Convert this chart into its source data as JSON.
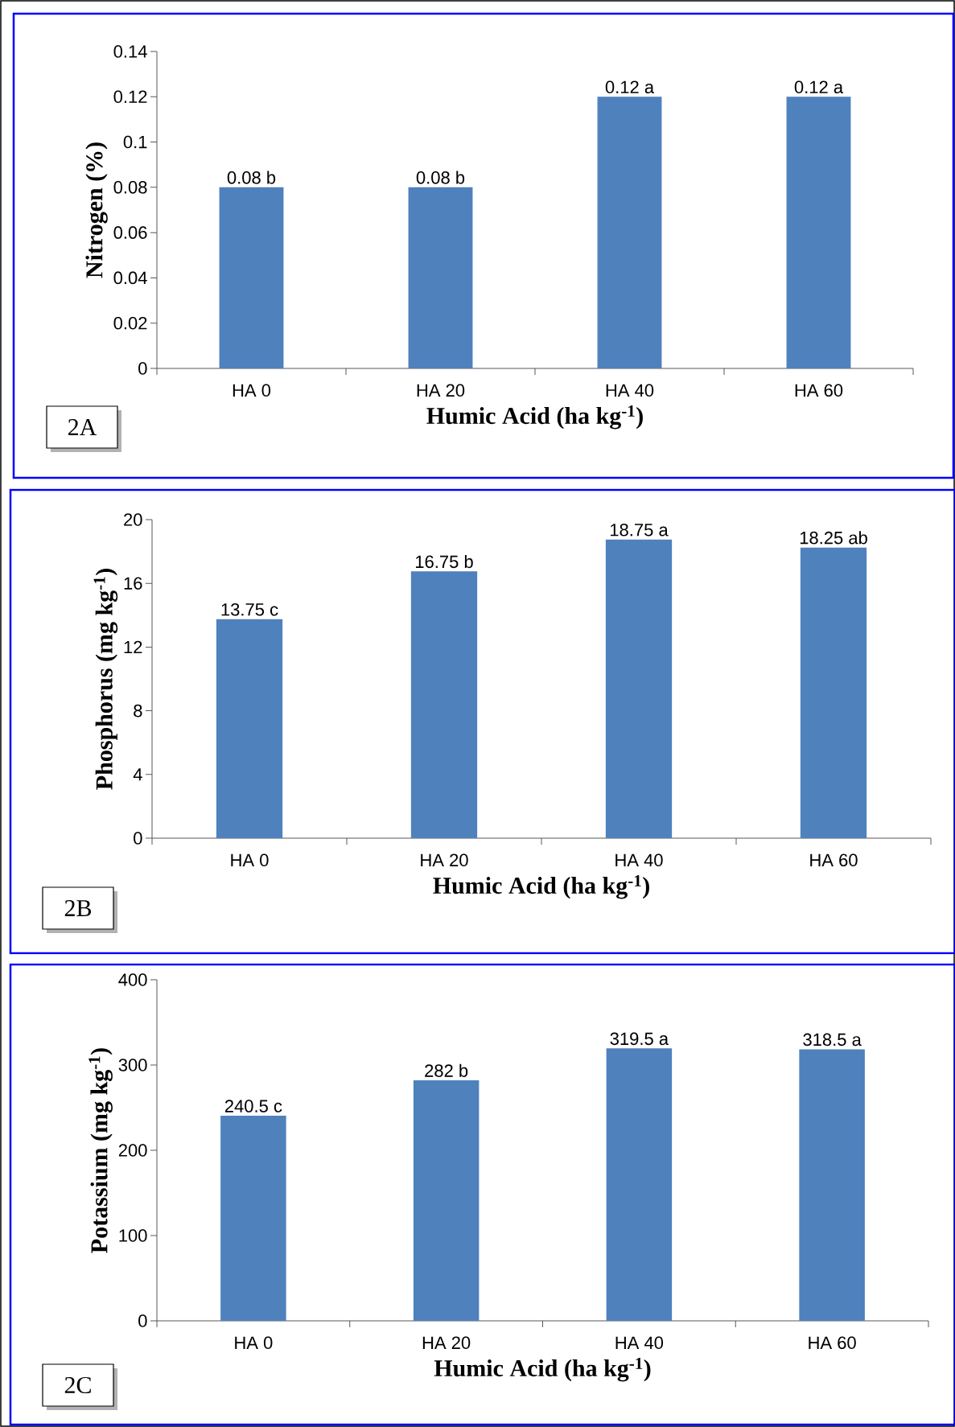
{
  "chart_data": [
    {
      "type": "bar",
      "categories": [
        "HA 0",
        "HA 20",
        "HA 40",
        "HA 60"
      ],
      "values": [
        0.08,
        0.08,
        0.12,
        0.12
      ],
      "value_labels": [
        "0.08 b",
        "0.08 b",
        "0.12 a",
        "0.12 a"
      ],
      "color": "#4f81bd",
      "ylim": [
        0,
        0.14
      ],
      "yticks": [
        0,
        0.02,
        0.04,
        0.06,
        0.08,
        0.1,
        0.12,
        0.14
      ],
      "xlabel": "Humic Acid (ha kg$^{-1}$)",
      "ylabel": "Nitrogen (%)",
      "annotations": [
        "2A"
      ]
    },
    {
      "type": "bar",
      "categories": [
        "HA 0",
        "HA 20",
        "HA 40",
        "HA 60"
      ],
      "values": [
        13.75,
        16.75,
        18.75,
        18.25
      ],
      "value_labels": [
        "13.75 c",
        "16.75 b",
        "18.75 a",
        "18.25 ab"
      ],
      "color": "#4f81bd",
      "ylim": [
        0,
        20
      ],
      "yticks": [
        0,
        4,
        8,
        12,
        16,
        20
      ],
      "xlabel": "Humic Acid (ha kg$^{-1}$)",
      "ylabel": "Phosphorus (mg kg$^{-1}$)",
      "annotations": [
        "2B"
      ]
    },
    {
      "type": "bar",
      "categories": [
        "HA 0",
        "HA 20",
        "HA 40",
        "HA 60"
      ],
      "values": [
        240.5,
        282,
        319.5,
        318.5
      ],
      "value_labels": [
        "240.5 c",
        "282 b",
        "319.5 a",
        "318.5 a"
      ],
      "color": "#4f81bd",
      "ylim": [
        0,
        400
      ],
      "yticks": [
        0,
        100,
        200,
        300,
        400
      ],
      "xlabel": "Humic Acid (ha kg$^{-1}$)",
      "ylabel": "Potassium (mg kg$^{-1}$)",
      "annotations": [
        "2C"
      ]
    }
  ]
}
